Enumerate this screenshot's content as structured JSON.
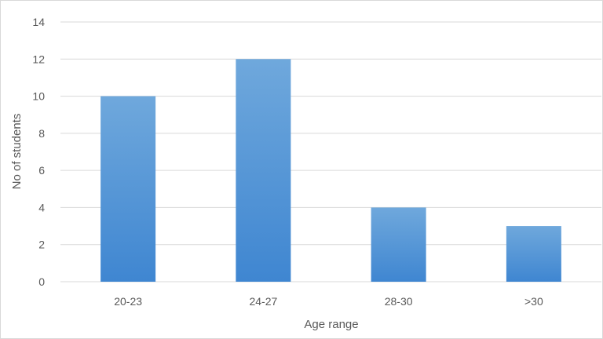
{
  "chart_data": {
    "type": "bar",
    "title": "",
    "xlabel": "Age range",
    "ylabel": "No of students",
    "categories": [
      "20-23",
      "24-27",
      "28-30",
      ">30"
    ],
    "values": [
      10,
      12,
      4,
      3
    ],
    "ylim": [
      0,
      14
    ],
    "yticks": [
      "0",
      "2",
      "4",
      "6",
      "8",
      "10",
      "12",
      "14"
    ],
    "grid": true,
    "legend": "none",
    "colors": {
      "bar_top": "#6fa8dc",
      "bar_bottom": "#3f86d1",
      "grid": "#d9d9d9",
      "text": "#595959"
    }
  }
}
